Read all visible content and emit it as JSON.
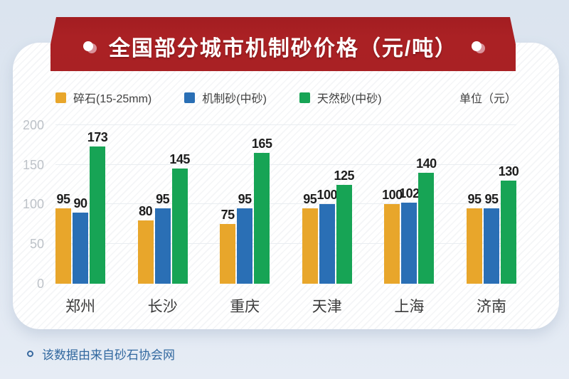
{
  "banner": {
    "title": "全国部分城市机制砂价格（元/吨）",
    "background_color": "#a92124",
    "dot_color": "#ffffff"
  },
  "legend": {
    "items": [
      {
        "label": "碎石(15-25mm)",
        "color": "#e8a62b"
      },
      {
        "label": "机制砂(中砂)",
        "color": "#2a6fb5"
      },
      {
        "label": "天然砂(中砂)",
        "color": "#17a455"
      }
    ],
    "unit_label": "单位（元）"
  },
  "chart_data": {
    "type": "bar",
    "title": "全国部分城市机制砂价格（元/吨）",
    "categories": [
      "郑州",
      "长沙",
      "重庆",
      "天津",
      "上海",
      "济南"
    ],
    "series": [
      {
        "name": "碎石(15-25mm)",
        "color": "#e8a62b",
        "values": [
          95,
          80,
          75,
          95,
          100,
          95
        ]
      },
      {
        "name": "机制砂(中砂)",
        "color": "#2a6fb5",
        "values": [
          90,
          95,
          95,
          100,
          102,
          95
        ]
      },
      {
        "name": "天然砂(中砂)",
        "color": "#17a455",
        "values": [
          173,
          145,
          165,
          125,
          140,
          130
        ]
      }
    ],
    "xlabel": "",
    "ylabel": "",
    "ylim": [
      0,
      200
    ],
    "yticks": [
      0,
      50,
      100,
      150,
      200
    ],
    "grid": true,
    "legend_position": "top"
  },
  "footer": {
    "source_text": "该数据由来自砂石协会网"
  }
}
